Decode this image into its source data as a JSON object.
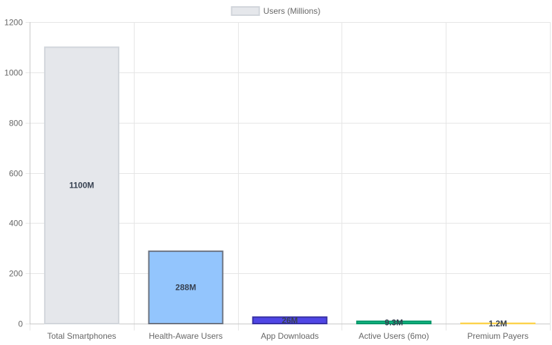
{
  "chart_data": {
    "type": "bar",
    "categories": [
      "Total Smartphones",
      "Health-Aware Users",
      "App Downloads",
      "Active Users (6mo)",
      "Premium Payers"
    ],
    "series": [
      {
        "name": "Users (Millions)",
        "values": [
          1100,
          288,
          26,
          9.3,
          1.2
        ],
        "data_labels": [
          "1100M",
          "288M",
          "26M",
          "9.3M",
          "1.2M"
        ],
        "fill_colors": [
          "#e5e7eb",
          "#93c5fd",
          "#4f46e5",
          "#10b981",
          "#fde68a"
        ],
        "border_colors": [
          "#d1d5db",
          "#6b7280",
          "#3730a3",
          "#059669",
          "#fcd34d"
        ]
      }
    ],
    "legend": {
      "label": "Users (Millions)",
      "position": "top",
      "swatch_color": "#e5e7eb",
      "swatch_border": "#d1d5db"
    },
    "ylim": [
      0,
      1200
    ],
    "y_ticks": [
      0,
      200,
      400,
      600,
      800,
      1000,
      1200
    ],
    "y_tick_labels": [
      "0",
      "200",
      "400",
      "600",
      "800",
      "1000",
      "1200"
    ],
    "grid": true,
    "grid_color": "#e5e5e5",
    "axis_color": "#c8c8c8"
  }
}
